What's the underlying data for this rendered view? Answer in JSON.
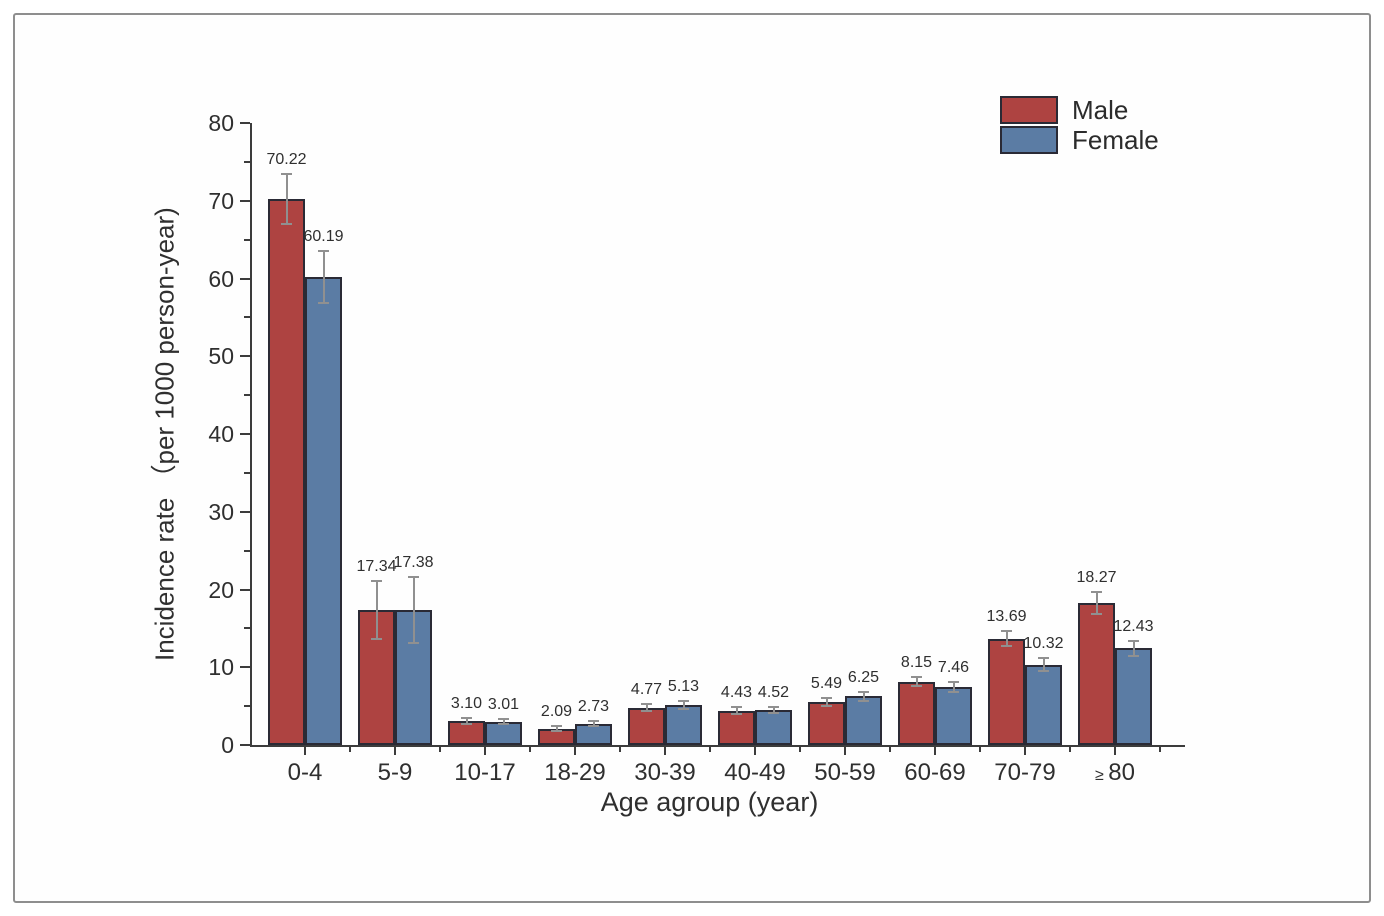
{
  "frame": {
    "border_color": "#8e8e8e",
    "background": "#fefefe"
  },
  "chart_data": {
    "type": "bar",
    "title": "",
    "categories": [
      "0-4",
      "5-9",
      "10-17",
      "18-29",
      "30-39",
      "40-49",
      "50-59",
      "60-69",
      "70-79",
      "≥ 80"
    ],
    "series": [
      {
        "name": "Male",
        "color": "#ae4341",
        "border_color": "#2a2a35",
        "values": [
          70.22,
          17.34,
          3.1,
          2.09,
          4.77,
          4.43,
          5.49,
          8.15,
          13.69,
          18.27
        ],
        "errors": [
          3.2,
          3.7,
          0.35,
          0.3,
          0.45,
          0.4,
          0.5,
          0.6,
          1.0,
          1.4
        ],
        "value_labels": [
          "70.22",
          "17.34",
          "3.10",
          "2.09",
          "4.77",
          "4.43",
          "5.49",
          "8.15",
          "13.69",
          "18.27"
        ]
      },
      {
        "name": "Female",
        "color": "#5b7ca4",
        "border_color": "#2a2a35",
        "values": [
          60.19,
          17.38,
          3.01,
          2.73,
          5.13,
          4.52,
          6.25,
          7.46,
          10.32,
          12.43
        ],
        "errors": [
          3.3,
          4.2,
          0.35,
          0.3,
          0.5,
          0.4,
          0.55,
          0.6,
          0.85,
          1.0
        ],
        "value_labels": [
          "60.19",
          "17.38",
          "3.01",
          "2.73",
          "5.13",
          "4.52",
          "6.25",
          "7.46",
          "10.32",
          "12.43"
        ]
      }
    ],
    "xlabel": "Age agroup (year)",
    "ylabel": "Incidence rate （per 1000 person-year)",
    "ylim": [
      0,
      80
    ],
    "ymajor_ticks": [
      0,
      10,
      20,
      30,
      40,
      50,
      60,
      70,
      80
    ],
    "yminor_step": 5,
    "error_bar_color": "#909090",
    "axis_color": "#3c3c3c",
    "text_color": "#2f2f2f",
    "legend": {
      "position": "top-right",
      "entries": [
        "Male",
        "Female"
      ]
    },
    "grid": false
  }
}
